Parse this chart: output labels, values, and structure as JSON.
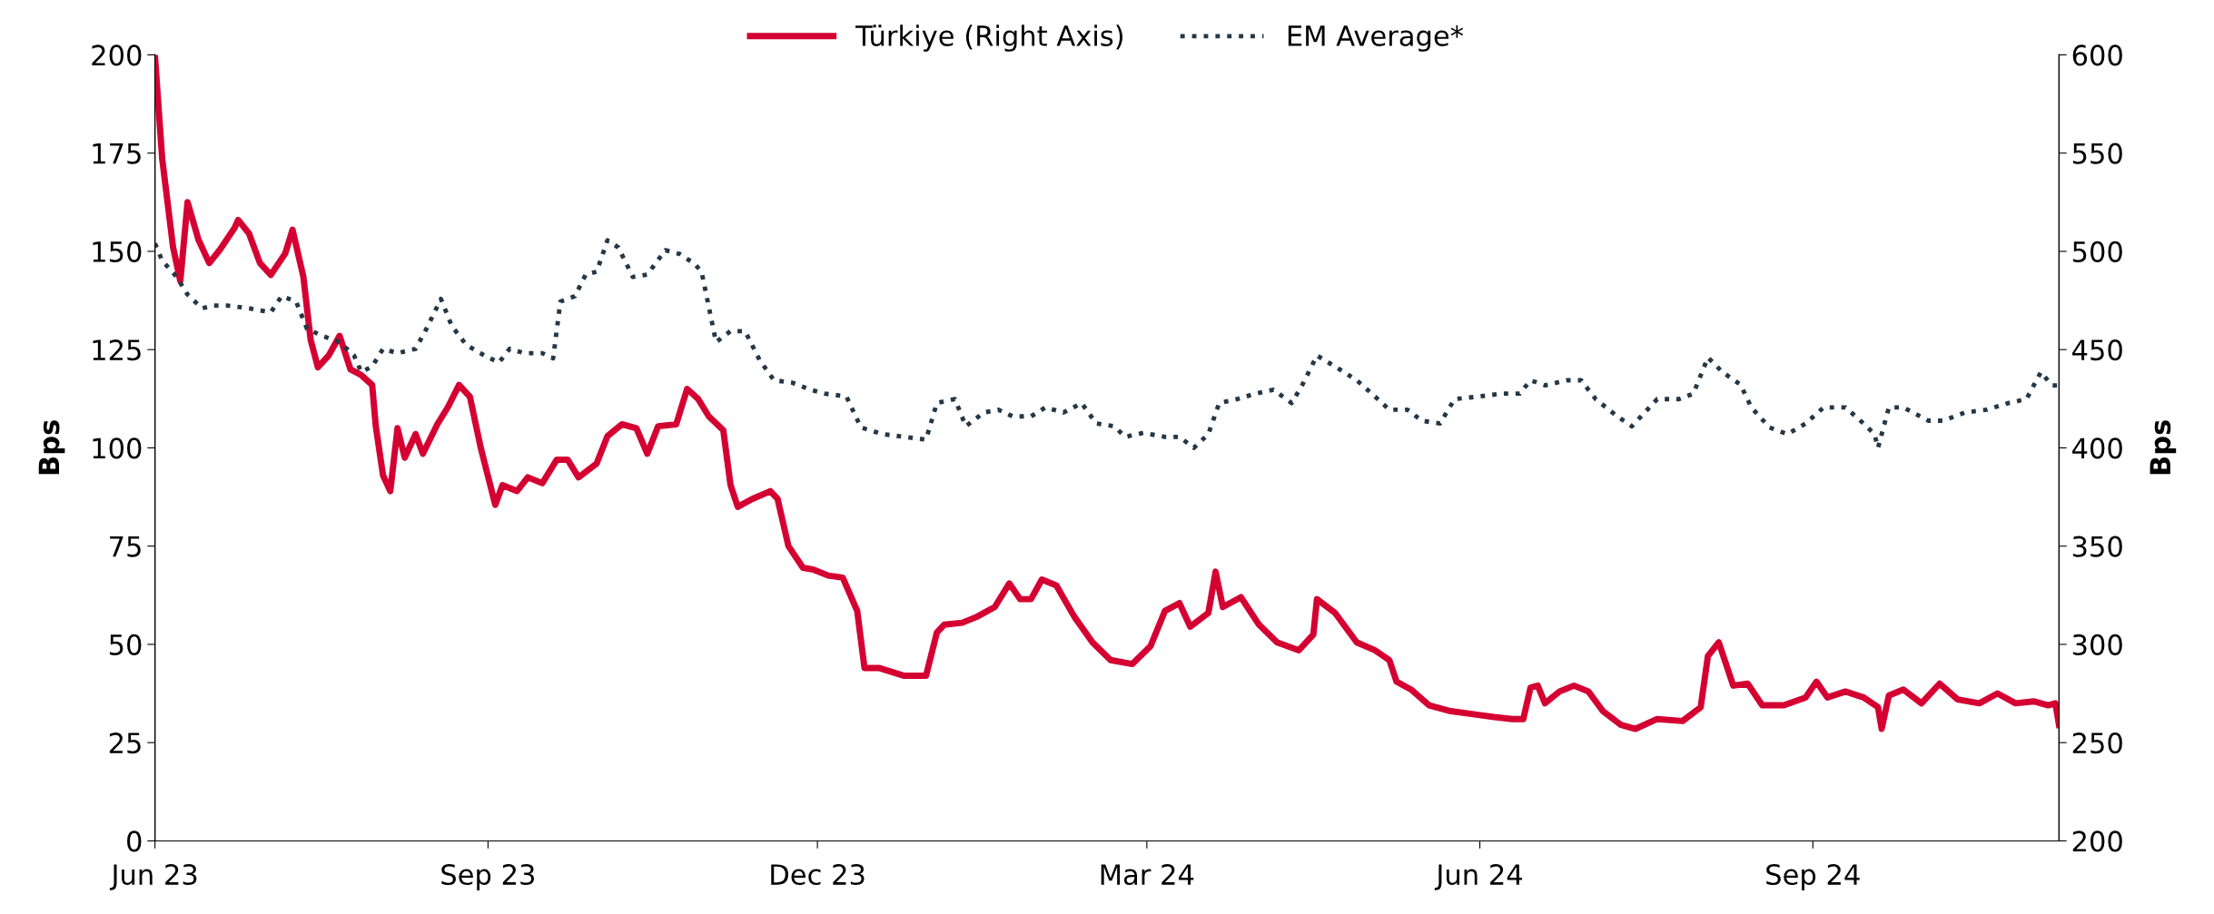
{
  "chart_data": {
    "type": "line",
    "ylabel": "Bps",
    "y2label": "Bps",
    "xlim": [
      "2023-06-01",
      "2024-11-08"
    ],
    "xticks": [
      {
        "value": "2023-06-01",
        "label": "Jun 23"
      },
      {
        "value": "2023-09-01",
        "label": "Sep 23"
      },
      {
        "value": "2023-12-01",
        "label": "Dec 23"
      },
      {
        "value": "2024-03-01",
        "label": "Mar 24"
      },
      {
        "value": "2024-06-01",
        "label": "Jun 24"
      },
      {
        "value": "2024-09-01",
        "label": "Sep 24"
      }
    ],
    "ylim": [
      0,
      200
    ],
    "yticks": [
      0,
      25,
      50,
      75,
      100,
      125,
      150,
      175,
      200
    ],
    "y2lim": [
      200,
      600
    ],
    "y2ticks": [
      200,
      250,
      300,
      350,
      400,
      450,
      500,
      550,
      600
    ],
    "grid": false,
    "legend": "top",
    "marker": "none",
    "series": [
      {
        "name": "Türkiye (Right Axis)",
        "color": "#d50032",
        "axis": "y2",
        "line_style": "solid",
        "x": [
          "2023-06-01",
          "2023-06-03",
          "2023-06-06",
          "2023-06-08",
          "2023-06-10",
          "2023-06-13",
          "2023-06-16",
          "2023-06-19",
          "2023-06-23",
          "2023-06-24",
          "2023-06-27",
          "2023-06-30",
          "2023-07-03",
          "2023-07-07",
          "2023-07-09",
          "2023-07-12",
          "2023-07-14",
          "2023-07-16",
          "2023-07-19",
          "2023-07-22",
          "2023-07-25",
          "2023-07-28",
          "2023-07-31",
          "2023-08-01",
          "2023-08-03",
          "2023-08-05",
          "2023-08-07",
          "2023-08-09",
          "2023-08-12",
          "2023-08-14",
          "2023-08-18",
          "2023-08-21",
          "2023-08-24",
          "2023-08-27",
          "2023-08-30",
          "2023-09-03",
          "2023-09-05",
          "2023-09-09",
          "2023-09-12",
          "2023-09-16",
          "2023-09-20",
          "2023-09-23",
          "2023-09-26",
          "2023-10-01",
          "2023-10-04",
          "2023-10-08",
          "2023-10-12",
          "2023-10-15",
          "2023-10-18",
          "2023-10-23",
          "2023-10-26",
          "2023-10-29",
          "2023-11-01",
          "2023-11-05",
          "2023-11-07",
          "2023-11-09",
          "2023-11-13",
          "2023-11-18",
          "2023-11-20",
          "2023-11-23",
          "2023-11-27",
          "2023-11-30",
          "2023-12-04",
          "2023-12-08",
          "2023-12-12",
          "2023-12-14",
          "2023-12-18",
          "2023-12-25",
          "2023-12-31",
          "2024-01-03",
          "2024-01-05",
          "2024-01-10",
          "2024-01-14",
          "2024-01-19",
          "2024-01-23",
          "2024-01-26",
          "2024-01-29",
          "2024-02-01",
          "2024-02-05",
          "2024-02-10",
          "2024-02-15",
          "2024-02-20",
          "2024-02-26",
          "2024-03-02",
          "2024-03-06",
          "2024-03-10",
          "2024-03-13",
          "2024-03-18",
          "2024-03-20",
          "2024-03-22",
          "2024-03-27",
          "2024-04-01",
          "2024-04-06",
          "2024-04-12",
          "2024-04-16",
          "2024-04-17",
          "2024-04-22",
          "2024-04-28",
          "2024-05-03",
          "2024-05-07",
          "2024-05-09",
          "2024-05-13",
          "2024-05-18",
          "2024-05-24",
          "2024-06-01",
          "2024-06-05",
          "2024-06-10",
          "2024-06-13",
          "2024-06-15",
          "2024-06-17",
          "2024-06-19",
          "2024-06-23",
          "2024-06-27",
          "2024-07-01",
          "2024-07-05",
          "2024-07-10",
          "2024-07-14",
          "2024-07-20",
          "2024-07-27",
          "2024-08-01",
          "2024-08-03",
          "2024-08-06",
          "2024-08-10",
          "2024-08-14",
          "2024-08-18",
          "2024-08-24",
          "2024-08-30",
          "2024-09-02",
          "2024-09-05",
          "2024-09-10",
          "2024-09-15",
          "2024-09-19",
          "2024-09-20",
          "2024-09-22",
          "2024-09-26",
          "2024-10-01",
          "2024-10-06",
          "2024-10-11",
          "2024-10-17",
          "2024-10-22",
          "2024-10-27",
          "2024-11-01",
          "2024-11-05",
          "2024-11-07",
          "2024-11-08"
        ],
        "values": [
          599,
          547,
          502,
          485,
          525,
          506,
          494,
          501,
          512,
          516,
          509,
          494,
          488,
          499,
          511,
          487,
          455,
          441,
          447,
          457,
          440,
          437,
          432,
          411,
          386,
          378,
          410,
          395,
          407,
          397,
          412,
          421,
          432,
          426,
          400,
          371,
          381,
          378,
          385,
          382,
          394,
          394,
          385,
          392,
          406,
          412,
          410,
          397,
          411,
          412,
          430,
          425,
          416,
          409,
          381,
          370,
          374,
          378,
          374,
          350,
          339,
          338,
          335,
          334,
          317,
          288,
          288,
          284,
          284,
          306,
          310,
          311,
          314,
          319,
          331,
          323,
          323,
          333,
          330,
          314,
          301,
          292,
          290,
          299,
          317,
          321,
          309,
          316,
          337,
          319,
          324,
          310,
          301,
          297,
          305,
          323,
          316,
          301,
          297,
          292,
          281,
          277,
          269,
          266,
          264,
          263,
          262,
          262,
          278,
          279,
          270,
          276,
          279,
          276,
          266,
          259,
          257,
          262,
          261,
          268,
          294,
          301,
          279,
          280,
          269,
          269,
          273,
          281,
          273,
          276,
          273,
          268,
          257,
          274,
          277,
          270,
          280,
          272,
          270,
          275,
          270,
          271,
          269,
          270,
          259
        ]
      },
      {
        "name": "EM Average*",
        "color": "#243746",
        "line_style": "dotted",
        "x": [
          "2023-06-01",
          "2023-06-03",
          "2023-06-07",
          "2023-06-10",
          "2023-06-14",
          "2023-06-17",
          "2023-06-21",
          "2023-06-27",
          "2023-07-03",
          "2023-07-06",
          "2023-07-10",
          "2023-07-13",
          "2023-07-17",
          "2023-07-22",
          "2023-07-26",
          "2023-07-28",
          "2023-07-31",
          "2023-08-03",
          "2023-08-07",
          "2023-08-12",
          "2023-08-15",
          "2023-08-19",
          "2023-08-22",
          "2023-08-26",
          "2023-08-31",
          "2023-09-04",
          "2023-09-07",
          "2023-09-11",
          "2023-09-16",
          "2023-09-19",
          "2023-09-21",
          "2023-09-25",
          "2023-09-28",
          "2023-10-01",
          "2023-10-04",
          "2023-10-07",
          "2023-10-11",
          "2023-10-15",
          "2023-10-20",
          "2023-10-24",
          "2023-10-28",
          "2023-10-30",
          "2023-11-03",
          "2023-11-07",
          "2023-11-11",
          "2023-11-15",
          "2023-11-19",
          "2023-11-24",
          "2023-11-29",
          "2023-12-03",
          "2023-12-09",
          "2023-12-13",
          "2023-12-19",
          "2023-12-25",
          "2023-12-31",
          "2024-01-03",
          "2024-01-08",
          "2024-01-11",
          "2024-01-16",
          "2024-01-20",
          "2024-01-24",
          "2024-01-29",
          "2024-02-02",
          "2024-02-07",
          "2024-02-12",
          "2024-02-16",
          "2024-02-21",
          "2024-02-24",
          "2024-02-29",
          "2024-03-06",
          "2024-03-10",
          "2024-03-14",
          "2024-03-18",
          "2024-03-21",
          "2024-03-26",
          "2024-03-31",
          "2024-04-05",
          "2024-04-10",
          "2024-04-13",
          "2024-04-17",
          "2024-04-22",
          "2024-04-28",
          "2024-05-03",
          "2024-05-07",
          "2024-05-12",
          "2024-05-16",
          "2024-05-21",
          "2024-05-25",
          "2024-06-01",
          "2024-06-07",
          "2024-06-12",
          "2024-06-15",
          "2024-06-19",
          "2024-06-25",
          "2024-06-29",
          "2024-07-03",
          "2024-07-09",
          "2024-07-13",
          "2024-07-20",
          "2024-07-26",
          "2024-07-30",
          "2024-08-03",
          "2024-08-07",
          "2024-08-12",
          "2024-08-15",
          "2024-08-20",
          "2024-08-25",
          "2024-08-30",
          "2024-09-04",
          "2024-09-10",
          "2024-09-15",
          "2024-09-18",
          "2024-09-19",
          "2024-09-22",
          "2024-09-26",
          "2024-10-03",
          "2024-10-07",
          "2024-10-13",
          "2024-10-19",
          "2024-10-25",
          "2024-10-30",
          "2024-11-03",
          "2024-11-06",
          "2024-11-08"
        ],
        "values": [
          152,
          147.6,
          143.5,
          139,
          135.5,
          136.2,
          136.2,
          135.5,
          134.5,
          138.6,
          137.2,
          130.3,
          128.6,
          126.9,
          123.5,
          119.3,
          120.7,
          125.2,
          124.1,
          125.2,
          130.3,
          137.9,
          131,
          126.2,
          123.5,
          121.7,
          125.2,
          124.1,
          124.1,
          122.8,
          137.2,
          138.6,
          144.1,
          144.8,
          152.8,
          151,
          143.5,
          144.1,
          150.3,
          149.3,
          146.9,
          144.8,
          126.9,
          129.7,
          129.7,
          122.4,
          117.2,
          116.6,
          114.8,
          113.8,
          113.1,
          105.2,
          103.5,
          102.8,
          102.1,
          111.4,
          112.4,
          105.5,
          109,
          109.7,
          108,
          108,
          110.3,
          109,
          111.4,
          106.2,
          105.5,
          102.8,
          103.8,
          102.8,
          102.8,
          100,
          103.5,
          111.4,
          112.4,
          113.8,
          114.8,
          111.4,
          116.1,
          123.5,
          120.7,
          117.2,
          113.1,
          109.7,
          109.7,
          106.9,
          106.2,
          112.4,
          113.1,
          113.8,
          113.8,
          117.2,
          115.9,
          117.2,
          117.2,
          112.4,
          108,
          105.5,
          112.4,
          112.4,
          113.8,
          123,
          119.3,
          116.1,
          110.3,
          105.2,
          103.5,
          106.2,
          110.3,
          110.3,
          106.2,
          103.5,
          100,
          110.3,
          110.3,
          106.9,
          106.9,
          109,
          109.7,
          111.4,
          112.4,
          119.3,
          115.9,
          115.9
        ]
      }
    ]
  }
}
